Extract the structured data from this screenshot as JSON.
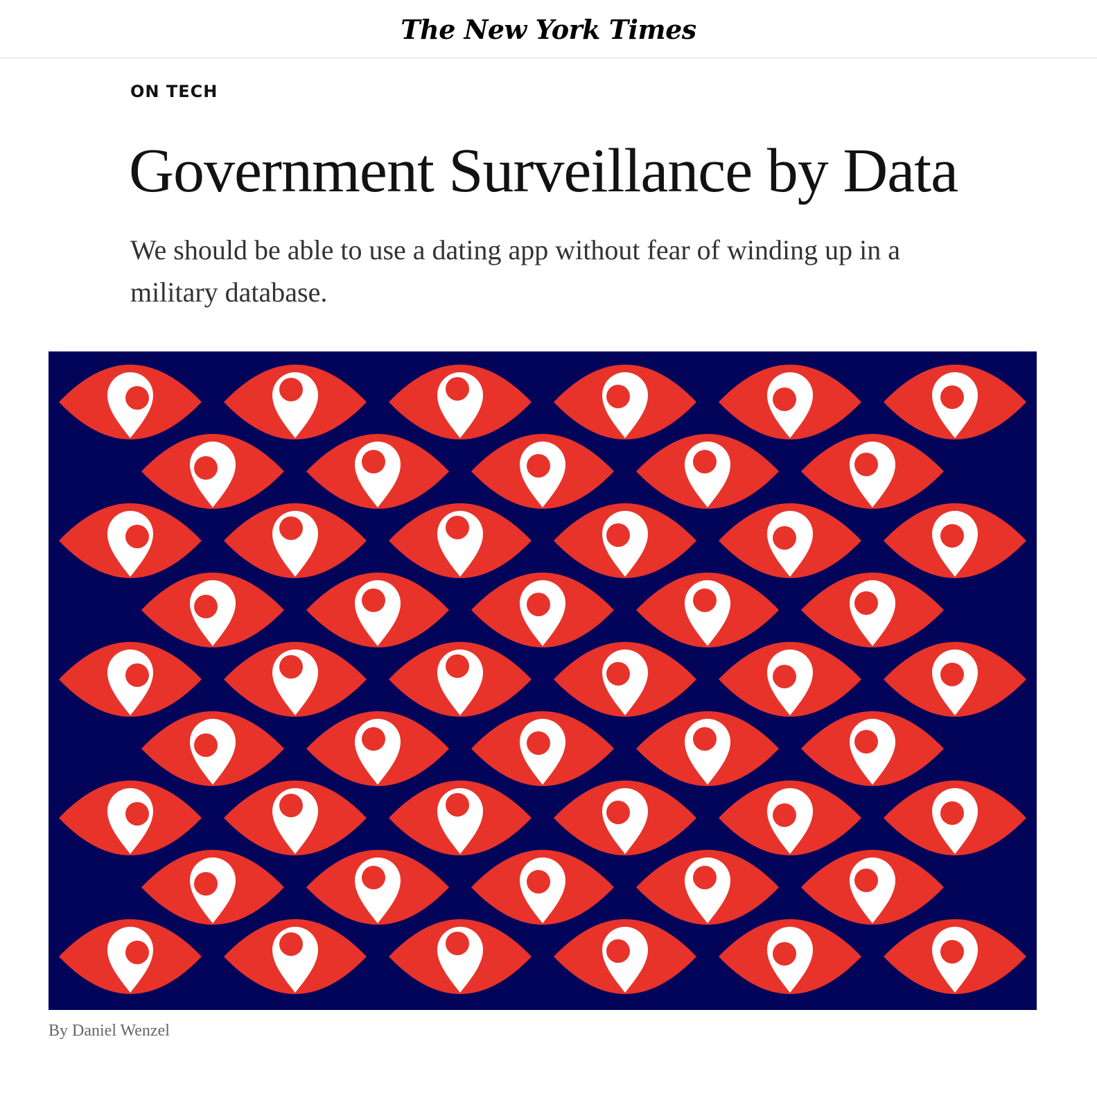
{
  "masthead": {
    "logo_text": "The New York Times"
  },
  "article": {
    "kicker": "ON TECH",
    "headline": "Government Surveillance by Data",
    "summary": "We should be able to use a dating app without fear of winding up in a military database.",
    "byline": "By Daniel Wenzel"
  },
  "illustration": {
    "background_color": "#02045a",
    "eye_color": "#e8332a",
    "pin_color": "#ffffff",
    "pattern": {
      "rows": 9,
      "eyes_per_long_row": 6,
      "eyes_per_short_row": 5
    },
    "icons": [
      "eye-icon",
      "location-pin-icon"
    ]
  }
}
